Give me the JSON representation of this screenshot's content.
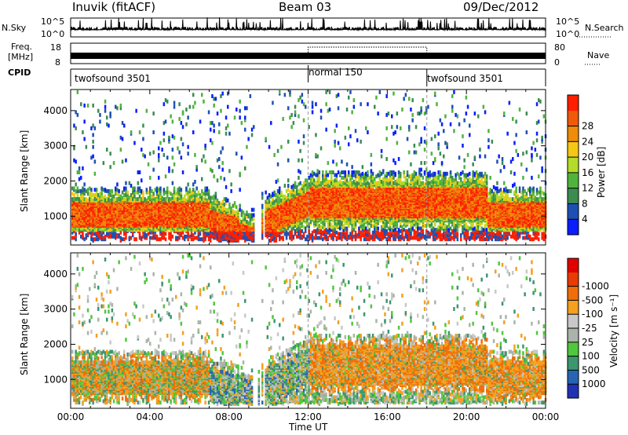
{
  "header": {
    "station": "Inuvik (fitACF)",
    "beam": "Beam 03",
    "date": "09/Dec/2012"
  },
  "noise_panel": {
    "left_label": "N.Sky",
    "right_label": "N.Search",
    "left_ticks": [
      "10^5",
      "10^0"
    ],
    "right_ticks": [
      "10^5",
      "10^0"
    ]
  },
  "freq_panel": {
    "left_label_top": "Freq.",
    "left_label_bottom": "[MHz]",
    "right_label": "Nave",
    "left_ticks": [
      "18",
      "8"
    ],
    "right_ticks": [
      "80",
      "0"
    ]
  },
  "cpid_panel": {
    "label": "CPID",
    "segments": [
      {
        "name": "twofsound 3501",
        "start_hour": 0,
        "end_hour": 12
      },
      {
        "name": "normal 150",
        "start_hour": 12,
        "end_hour": 18
      },
      {
        "name": "twofsound 3501",
        "start_hour": 18,
        "end_hour": 24
      }
    ]
  },
  "time_axis": {
    "label": "Time UT",
    "ticks": [
      "00:00",
      "04:00",
      "08:00",
      "12:00",
      "16:00",
      "20:00",
      "00:00"
    ]
  },
  "chart_data": [
    {
      "type": "heatmap",
      "name": "power-panel",
      "ylabel": "Slant Range [km]",
      "xlim_hours": [
        0,
        24
      ],
      "ylim": [
        180,
        4600
      ],
      "yticks": [
        "1000",
        "2000",
        "3000",
        "4000"
      ],
      "ytick_values": [
        1000,
        2000,
        3000,
        4000
      ],
      "colorbar": {
        "label": "Power [dB]",
        "ticks": [
          "4",
          "8",
          "12",
          "16",
          "20",
          "24",
          "28"
        ],
        "colors": [
          "#0a1eff",
          "#1e50b4",
          "#3c8c50",
          "#50b43c",
          "#b4dc28",
          "#f5c814",
          "#f08c0a",
          "#f05a0a",
          "#ff1e00"
        ]
      },
      "dominant_band": {
        "range_km": [
          600,
          1600
        ],
        "description_color": "#ff2a00"
      }
    },
    {
      "type": "heatmap",
      "name": "velocity-panel",
      "ylabel": "Slant Range [km]",
      "xlim_hours": [
        0,
        24
      ],
      "ylim": [
        180,
        4600
      ],
      "yticks": [
        "1000",
        "2000",
        "3000",
        "4000"
      ],
      "ytick_values": [
        1000,
        2000,
        3000,
        4000
      ],
      "colorbar": {
        "label": "Velocity [m s⁻¹]",
        "ticks": [
          "1000",
          "500",
          "100",
          "25",
          "-25",
          "-100",
          "-500",
          "-1000"
        ],
        "colors": [
          "#1e32b4",
          "#2864b4",
          "#3c966e",
          "#50c83c",
          "#aab4aa",
          "#c8c8c8",
          "#f5a01e",
          "#f06e0a",
          "#e83c05",
          "#e10000"
        ]
      }
    }
  ]
}
